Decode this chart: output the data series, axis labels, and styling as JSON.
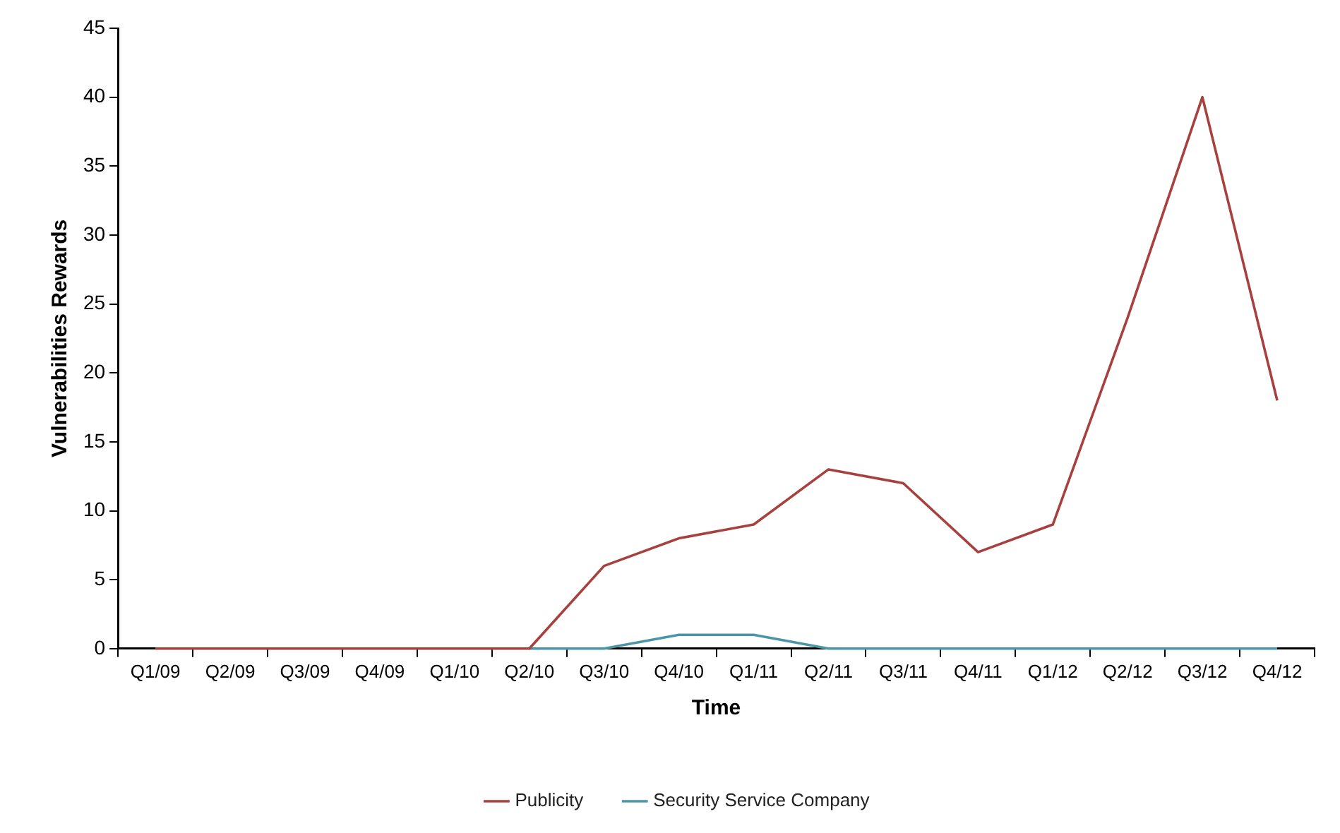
{
  "chart_data": {
    "type": "line",
    "xlabel": "Time",
    "ylabel": "Vulnerabilities Rewards",
    "categories": [
      "Q1/09",
      "Q2/09",
      "Q3/09",
      "Q4/09",
      "Q1/10",
      "Q2/10",
      "Q3/10",
      "Q4/10",
      "Q1/11",
      "Q2/11",
      "Q3/11",
      "Q4/11",
      "Q1/12",
      "Q2/12",
      "Q3/12",
      "Q4/12"
    ],
    "series": [
      {
        "name": "Security Service Company",
        "color": "#4a96a8",
        "values": [
          null,
          null,
          null,
          null,
          null,
          0,
          0,
          1,
          1,
          0,
          0,
          0,
          0,
          0,
          0,
          0
        ]
      },
      {
        "name": "Publicity",
        "color": "#a8403e",
        "values": [
          0,
          0,
          0,
          0,
          0,
          0,
          6,
          8,
          9,
          13,
          12,
          7,
          9,
          24,
          40,
          18
        ]
      }
    ],
    "ylim": [
      0,
      45
    ],
    "yticks": [
      0,
      5,
      10,
      15,
      20,
      25,
      30,
      35,
      40,
      45
    ],
    "grid": false,
    "legend": "bottom",
    "marker": "none",
    "line_style": "solid"
  }
}
